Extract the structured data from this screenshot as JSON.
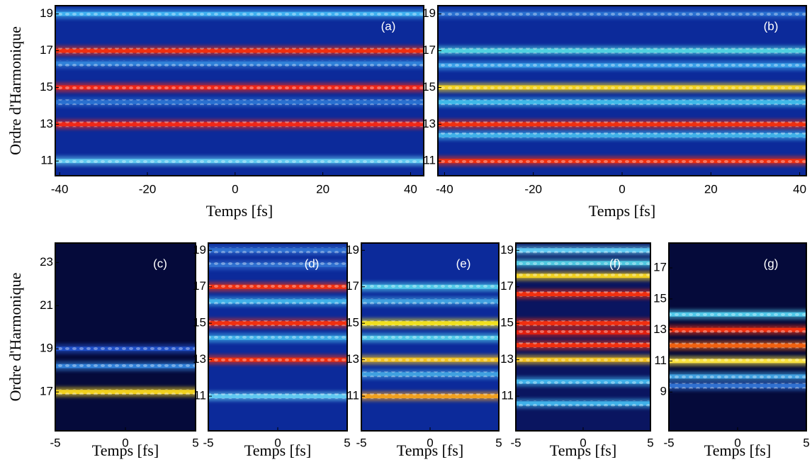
{
  "chart_data": [
    {
      "type": "heatmap",
      "label": "(a)",
      "xlabel": "Temps [fs]",
      "ylabel": "Ordre d'Harmonique",
      "background": "#0c2a9a",
      "xlim": [
        -41,
        43
      ],
      "xticks": [
        -40,
        -20,
        0,
        20,
        40
      ],
      "ylim": [
        10.2,
        19.45
      ],
      "yticks": [
        11,
        13,
        15,
        17,
        19
      ],
      "bands": [
        {
          "y": 19,
          "color": "#40b0f0"
        },
        {
          "y": 17,
          "color": "#f03010"
        },
        {
          "y": 16.3,
          "color": "#3080d8"
        },
        {
          "y": 15,
          "color": "#f02818"
        },
        {
          "y": 14.2,
          "color": "#2a70d0"
        },
        {
          "y": 13,
          "color": "#f02818"
        },
        {
          "y": 11,
          "color": "#60c8f0"
        }
      ]
    },
    {
      "type": "heatmap",
      "label": "(b)",
      "xlabel": "Temps [fs]",
      "background": "#0c2a9a",
      "xlim": [
        -41.5,
        41.5
      ],
      "xticks": [
        -40,
        -20,
        0,
        20,
        40
      ],
      "ylim": [
        10.2,
        19.45
      ],
      "yticks": [
        11,
        13,
        15,
        17,
        19
      ],
      "bands": [
        {
          "y": 19,
          "color": "#2a70d0"
        },
        {
          "y": 17,
          "color": "#50d0e0"
        },
        {
          "y": 16.2,
          "color": "#3aa0e8"
        },
        {
          "y": 15,
          "color": "#f0d020"
        },
        {
          "y": 14.2,
          "color": "#40b8e8"
        },
        {
          "y": 13,
          "color": "#f03010"
        },
        {
          "y": 12.4,
          "color": "#40b0e8"
        },
        {
          "y": 11,
          "color": "#f03010"
        }
      ]
    },
    {
      "type": "heatmap",
      "label": "(c)",
      "xlabel": "Temps [fs]",
      "ylabel": "Ordre d'Harmonique",
      "background": "#050a3a",
      "xlim": [
        -5,
        5
      ],
      "xticks": [
        -5,
        0,
        5
      ],
      "ylim": [
        15.2,
        23.9
      ],
      "yticks": [
        17,
        19,
        21,
        23
      ],
      "bands": [
        {
          "y": 19,
          "color": "#2050c8"
        },
        {
          "y": 18.2,
          "color": "#3080d8"
        },
        {
          "y": 17,
          "color": "#f0d020"
        }
      ]
    },
    {
      "type": "heatmap",
      "label": "(d)",
      "xlabel": "Temps [fs]",
      "background": "#0c2a9a",
      "xlim": [
        -5,
        5
      ],
      "xticks": [
        -5,
        0,
        5
      ],
      "ylim": [
        9.1,
        19.4
      ],
      "yticks": [
        11,
        13,
        15,
        17,
        19
      ],
      "bands": [
        {
          "y": 19,
          "color": "#3070d0"
        },
        {
          "y": 18.2,
          "color": "#3070d0"
        },
        {
          "y": 17,
          "color": "#f03010"
        },
        {
          "y": 16.2,
          "color": "#40b0e8"
        },
        {
          "y": 15,
          "color": "#f03010"
        },
        {
          "y": 14.2,
          "color": "#40b0e8"
        },
        {
          "y": 13,
          "color": "#f03010"
        },
        {
          "y": 11,
          "color": "#60c8f0"
        }
      ]
    },
    {
      "type": "heatmap",
      "label": "(e)",
      "xlabel": "Temps [fs]",
      "background": "#0c2a9a",
      "xlim": [
        -5,
        5
      ],
      "xticks": [
        -5,
        0,
        5
      ],
      "ylim": [
        9.1,
        19.4
      ],
      "yticks": [
        11,
        13,
        15,
        17,
        19
      ],
      "bands": [
        {
          "y": 17,
          "color": "#50c8e8"
        },
        {
          "y": 16.2,
          "color": "#40a0e0"
        },
        {
          "y": 15,
          "color": "#f0e020"
        },
        {
          "y": 14.2,
          "color": "#50c8e8"
        },
        {
          "y": 13,
          "color": "#f0c020"
        },
        {
          "y": 12.2,
          "color": "#40a0e0"
        },
        {
          "y": 11,
          "color": "#f0a020"
        }
      ]
    },
    {
      "type": "heatmap",
      "label": "(f)",
      "xlabel": "Temps [fs]",
      "background": "#0a1560",
      "xlim": [
        -5,
        5
      ],
      "xticks": [
        -5,
        0,
        5
      ],
      "ylim": [
        9.1,
        19.4
      ],
      "yticks": [
        11,
        13,
        15,
        17,
        19
      ],
      "bands": [
        {
          "y": 19,
          "color": "#60c8f0"
        },
        {
          "y": 18.3,
          "color": "#50c8e0"
        },
        {
          "y": 17.6,
          "color": "#f0d020"
        },
        {
          "y": 16.6,
          "color": "#f03010"
        },
        {
          "y": 15,
          "color": "#f03010"
        },
        {
          "y": 14.5,
          "color": "#e02010"
        },
        {
          "y": 13.8,
          "color": "#f03010"
        },
        {
          "y": 13,
          "color": "#f0c020"
        },
        {
          "y": 11.8,
          "color": "#40b0e8"
        },
        {
          "y": 10.6,
          "color": "#40b0e8"
        }
      ]
    },
    {
      "type": "heatmap",
      "label": "(g)",
      "xlabel": "Temps [fs]",
      "background": "#050a3a",
      "xlim": [
        -5,
        5
      ],
      "xticks": [
        -5,
        0,
        5
      ],
      "ylim": [
        6.5,
        18.6
      ],
      "yticks": [
        9,
        11,
        13,
        15,
        17
      ],
      "bands": [
        {
          "y": 14,
          "color": "#50c8e8"
        },
        {
          "y": 13,
          "color": "#f03010"
        },
        {
          "y": 12,
          "color": "#f06010"
        },
        {
          "y": 11,
          "color": "#f8e040"
        },
        {
          "y": 10,
          "color": "#40a0e0"
        },
        {
          "y": 9.4,
          "color": "#3070d0"
        }
      ]
    }
  ]
}
